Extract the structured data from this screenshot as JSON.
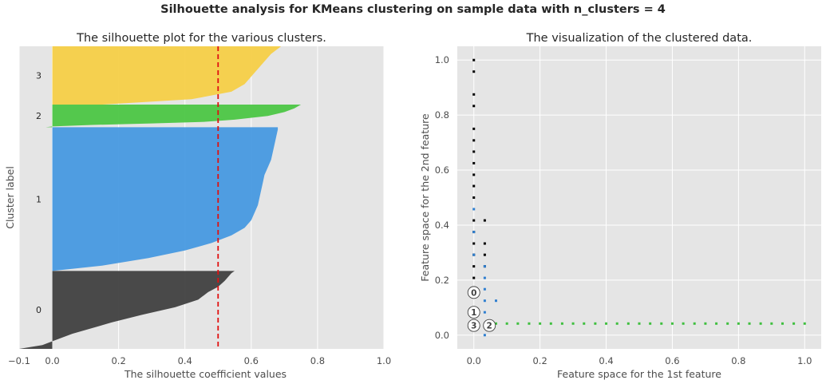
{
  "suptitle": "Silhouette analysis for KMeans clustering on sample data with n_clusters = 4",
  "chart_data": [
    {
      "type": "area",
      "title": "The silhouette plot for the various clusters.",
      "xlabel": "The silhouette coefficient values",
      "ylabel": "Cluster label",
      "xlim": [
        -0.1,
        1.0
      ],
      "xticks": [
        -0.1,
        0.0,
        0.2,
        0.4,
        0.6,
        0.8,
        1.0
      ],
      "xtick_labels": [
        "−0.1",
        "0.0",
        "0.2",
        "0.4",
        "0.6",
        "0.8",
        "1.0"
      ],
      "grid": true,
      "average_silhouette": 0.5,
      "clusters": [
        {
          "label": "0",
          "color": "#404040",
          "y_range": [
            0,
            103
          ],
          "profile": [
            [
              0,
              -0.1
            ],
            [
              5,
              -0.03
            ],
            [
              10,
              0.0
            ],
            [
              20,
              0.06
            ],
            [
              35,
              0.18
            ],
            [
              45,
              0.27
            ],
            [
              55,
              0.37
            ],
            [
              65,
              0.44
            ],
            [
              75,
              0.47
            ],
            [
              82,
              0.5
            ],
            [
              90,
              0.52
            ],
            [
              100,
              0.54
            ],
            [
              103,
              0.55
            ]
          ]
        },
        {
          "label": "1",
          "color": "#4799e0",
          "y_range": [
            103,
            293
          ],
          "profile": [
            [
              103,
              0.0
            ],
            [
              110,
              0.15
            ],
            [
              120,
              0.29
            ],
            [
              130,
              0.4
            ],
            [
              140,
              0.48
            ],
            [
              150,
              0.54
            ],
            [
              160,
              0.58
            ],
            [
              170,
              0.6
            ],
            [
              180,
              0.61
            ],
            [
              190,
              0.62
            ],
            [
              200,
              0.625
            ],
            [
              210,
              0.63
            ],
            [
              220,
              0.635
            ],
            [
              230,
              0.64
            ],
            [
              240,
              0.65
            ],
            [
              250,
              0.66
            ],
            [
              260,
              0.665
            ],
            [
              270,
              0.67
            ],
            [
              280,
              0.675
            ],
            [
              290,
              0.68
            ],
            [
              293,
              0.68
            ]
          ]
        },
        {
          "label": "2",
          "color": "#4cc644",
          "y_range": [
            293,
            323
          ],
          "profile": [
            [
              293,
              -0.02
            ],
            [
              294,
              0.0
            ],
            [
              296,
              0.12
            ],
            [
              298,
              0.3
            ],
            [
              300,
              0.45
            ],
            [
              303,
              0.55
            ],
            [
              308,
              0.65
            ],
            [
              313,
              0.7
            ],
            [
              318,
              0.73
            ],
            [
              323,
              0.75
            ]
          ]
        },
        {
          "label": "3",
          "color": "#f5cf47",
          "y_range": [
            323,
            400
          ],
          "profile": [
            [
              323,
              0.15
            ],
            [
              330,
              0.42
            ],
            [
              340,
              0.54
            ],
            [
              350,
              0.58
            ],
            [
              360,
              0.6
            ],
            [
              370,
              0.62
            ],
            [
              380,
              0.64
            ],
            [
              390,
              0.66
            ],
            [
              400,
              0.69
            ]
          ]
        }
      ]
    },
    {
      "type": "scatter",
      "title": "The visualization of the clustered data.",
      "xlabel": "Feature space for the 1st feature",
      "ylabel": "Feature space for the 2nd feature",
      "xlim": [
        -0.05,
        1.05
      ],
      "ylim": [
        -0.05,
        1.05
      ],
      "xticks": [
        0.0,
        0.2,
        0.4,
        0.6,
        0.8,
        1.0
      ],
      "yticks": [
        0.0,
        0.2,
        0.4,
        0.6,
        0.8,
        1.0
      ],
      "grid": true,
      "series": [
        {
          "color": "#000000",
          "x": [
            0,
            0,
            0,
            0,
            0,
            0,
            0,
            0,
            0,
            0,
            0,
            0,
            0,
            0,
            0,
            0,
            0,
            0,
            0.033,
            0.033,
            0.033,
            0.033
          ],
          "y": [
            1.0,
            0.958,
            0.875,
            0.833,
            0.75,
            0.708,
            0.667,
            0.625,
            0.583,
            0.542,
            0.5,
            0.417,
            0.375,
            0.333,
            0.292,
            0.25,
            0.208,
            0.167,
            0.417,
            0.333,
            0.292,
            0.25
          ]
        },
        {
          "color": "#2f7fd0",
          "x": [
            0,
            0,
            0,
            0.033,
            0.033,
            0.033,
            0.033,
            0.067,
            0,
            0.033,
            0.033
          ],
          "y": [
            0.458,
            0.375,
            0.292,
            0.25,
            0.208,
            0.167,
            0.125,
            0.125,
            0.083,
            0.083,
            0.0
          ]
        },
        {
          "color": "#3fbf3f",
          "x": [
            0.05,
            0.067,
            0.1,
            0.133,
            0.167,
            0.2,
            0.233,
            0.267,
            0.3,
            0.333,
            0.367,
            0.4,
            0.433,
            0.467,
            0.5,
            0.533,
            0.567,
            0.6,
            0.633,
            0.667,
            0.7,
            0.733,
            0.767,
            0.8,
            0.833,
            0.867,
            0.9,
            0.933,
            0.967,
            1.0
          ],
          "y": [
            0.042,
            0.042,
            0.042,
            0.042,
            0.042,
            0.042,
            0.042,
            0.042,
            0.042,
            0.042,
            0.042,
            0.042,
            0.042,
            0.042,
            0.042,
            0.042,
            0.042,
            0.042,
            0.042,
            0.042,
            0.042,
            0.042,
            0.042,
            0.042,
            0.042,
            0.042,
            0.042,
            0.042,
            0.042,
            0.042
          ]
        }
      ],
      "centers": [
        {
          "label": "0",
          "x": 0.0,
          "y": 0.155
        },
        {
          "label": "1",
          "x": 0.0,
          "y": 0.083
        },
        {
          "label": "3",
          "x": 0.0,
          "y": 0.035
        },
        {
          "label": "2",
          "x": 0.047,
          "y": 0.035
        }
      ]
    }
  ]
}
